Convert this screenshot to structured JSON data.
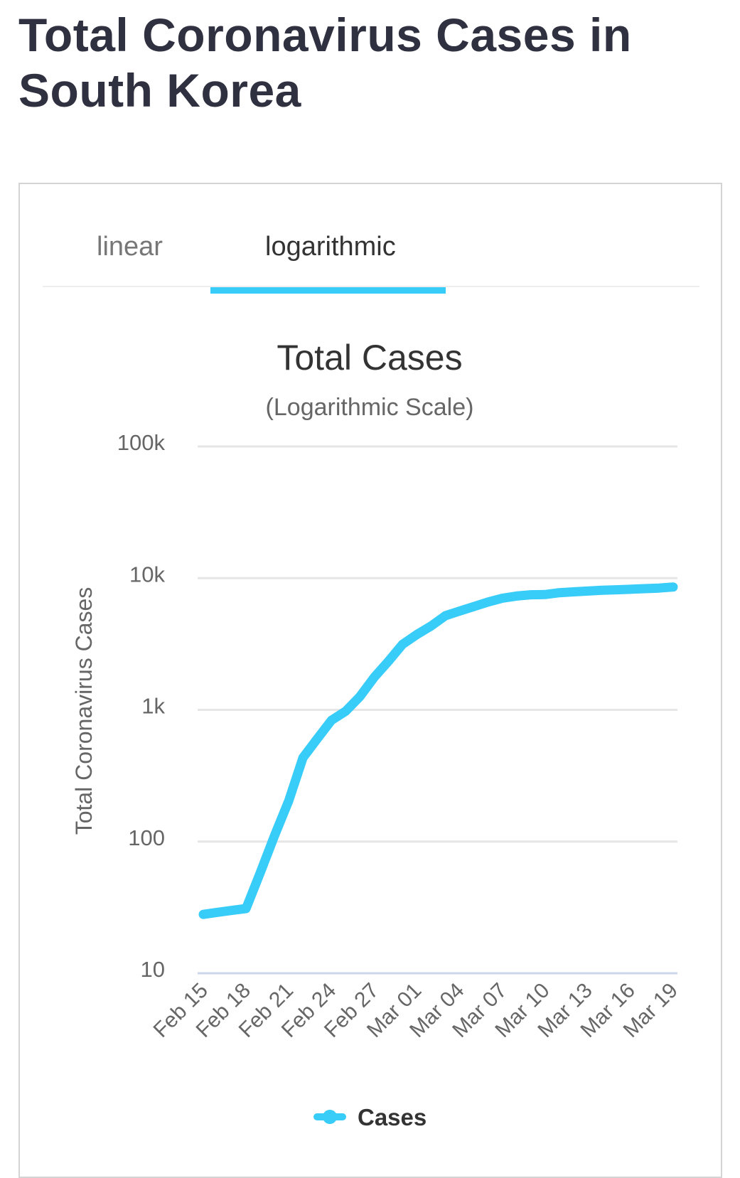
{
  "page": {
    "title": "Total Coronavirus Cases in South Korea"
  },
  "tabs": [
    {
      "label": "linear",
      "active": false
    },
    {
      "label": "logarithmic",
      "active": true
    }
  ],
  "colors": {
    "accent": "#38ccf8",
    "grid": "#e6e6e6",
    "text": "#666666"
  },
  "chart_data": {
    "type": "line",
    "title": "Total Cases",
    "subtitle": "(Logarithmic Scale)",
    "ylabel": "Total Coronavirus Cases",
    "xlabel": "",
    "yscale": "log",
    "ylim": [
      10,
      100000
    ],
    "yticks": [
      {
        "v": 10,
        "label": "10"
      },
      {
        "v": 100,
        "label": "100"
      },
      {
        "v": 1000,
        "label": "1k"
      },
      {
        "v": 10000,
        "label": "10k"
      },
      {
        "v": 100000,
        "label": "100k"
      }
    ],
    "xtick_labels": [
      "Feb 15",
      "Feb 18",
      "Feb 21",
      "Feb 24",
      "Feb 27",
      "Mar 01",
      "Mar 04",
      "Mar 07",
      "Mar 10",
      "Mar 13",
      "Mar 16",
      "Mar 19"
    ],
    "x": [
      "Feb 15",
      "Feb 16",
      "Feb 17",
      "Feb 18",
      "Feb 19",
      "Feb 20",
      "Feb 21",
      "Feb 22",
      "Feb 23",
      "Feb 24",
      "Feb 25",
      "Feb 26",
      "Feb 27",
      "Feb 28",
      "Feb 29",
      "Mar 01",
      "Mar 02",
      "Mar 03",
      "Mar 04",
      "Mar 05",
      "Mar 06",
      "Mar 07",
      "Mar 08",
      "Mar 09",
      "Mar 10",
      "Mar 11",
      "Mar 12",
      "Mar 13",
      "Mar 14",
      "Mar 15",
      "Mar 16",
      "Mar 17",
      "Mar 18",
      "Mar 19"
    ],
    "series": [
      {
        "name": "Cases",
        "values": [
          28,
          29,
          30,
          31,
          58,
          111,
          204,
          433,
          602,
          833,
          977,
          1261,
          1766,
          2337,
          3150,
          3736,
          4335,
          5186,
          5621,
          6088,
          6593,
          7041,
          7314,
          7478,
          7513,
          7755,
          7869,
          7979,
          8086,
          8162,
          8236,
          8320,
          8413,
          8565
        ]
      }
    ],
    "legend": {
      "position": "bottom-center",
      "entries": [
        "Cases"
      ]
    },
    "grid": true
  }
}
